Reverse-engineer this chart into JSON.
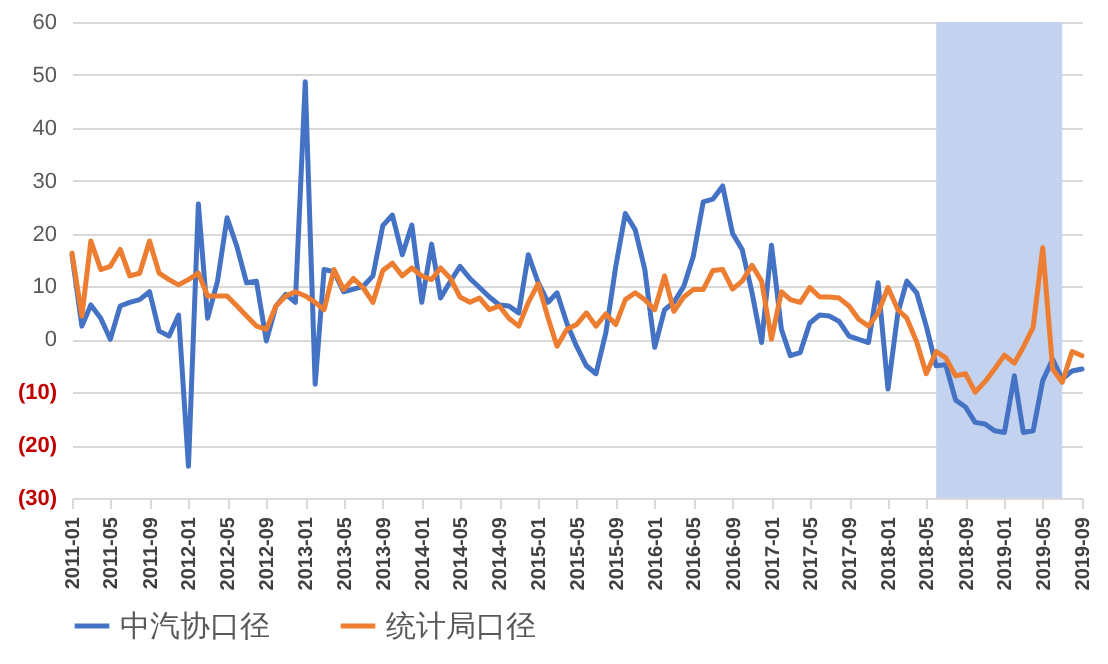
{
  "chart_data": {
    "type": "line",
    "x": [
      "2011-01",
      "2011-02",
      "2011-03",
      "2011-04",
      "2011-05",
      "2011-06",
      "2011-07",
      "2011-08",
      "2011-09",
      "2011-10",
      "2011-11",
      "2011-12",
      "2012-01",
      "2012-02",
      "2012-03",
      "2012-04",
      "2012-05",
      "2012-06",
      "2012-07",
      "2012-08",
      "2012-09",
      "2012-10",
      "2012-11",
      "2012-12",
      "2013-01",
      "2013-02",
      "2013-03",
      "2013-04",
      "2013-05",
      "2013-06",
      "2013-07",
      "2013-08",
      "2013-09",
      "2013-10",
      "2013-11",
      "2013-12",
      "2014-01",
      "2014-02",
      "2014-03",
      "2014-04",
      "2014-05",
      "2014-06",
      "2014-07",
      "2014-08",
      "2014-09",
      "2014-10",
      "2014-11",
      "2014-12",
      "2015-01",
      "2015-02",
      "2015-03",
      "2015-04",
      "2015-05",
      "2015-06",
      "2015-07",
      "2015-08",
      "2015-09",
      "2015-10",
      "2015-11",
      "2015-12",
      "2016-01",
      "2016-02",
      "2016-03",
      "2016-04",
      "2016-05",
      "2016-06",
      "2016-07",
      "2016-08",
      "2016-09",
      "2016-10",
      "2016-11",
      "2016-12",
      "2017-01",
      "2017-02",
      "2017-03",
      "2017-04",
      "2017-05",
      "2017-06",
      "2017-07",
      "2017-08",
      "2017-09",
      "2017-10",
      "2017-11",
      "2017-12",
      "2018-01",
      "2018-02",
      "2018-03",
      "2018-04",
      "2018-05",
      "2018-06",
      "2018-07",
      "2018-08",
      "2018-09",
      "2018-10",
      "2018-11",
      "2018-12",
      "2019-01",
      "2019-02",
      "2019-03",
      "2019-04",
      "2019-05",
      "2019-06",
      "2019-07",
      "2019-08",
      "2019-09"
    ],
    "series": [
      {
        "name": "中汽协口径",
        "color": "#4472c4",
        "values": [
          16,
          2.5,
          6.5,
          4,
          0,
          6.3,
          7,
          7.5,
          9,
          1.6,
          0.6,
          4.6,
          -24,
          25.6,
          4,
          11,
          23,
          17.5,
          10.7,
          11,
          -0.3,
          6.3,
          8.5,
          7,
          48.7,
          -8.5,
          13.2,
          12.8,
          9,
          9.5,
          10,
          12,
          21.5,
          23.5,
          16,
          21.6,
          7,
          18,
          7.8,
          11,
          13.8,
          11.5,
          9.8,
          8,
          6.5,
          6.3,
          5,
          16,
          10.7,
          7,
          8.8,
          3,
          -1.3,
          -5,
          -6.5,
          1.3,
          13.8,
          23.8,
          20.7,
          13.2,
          -1.5,
          5.6,
          7,
          10,
          15.7,
          26,
          26.5,
          29,
          20,
          17,
          8.8,
          -0.6,
          17.8,
          1.9,
          -3.1,
          -2.5,
          3.1,
          4.6,
          4.4,
          3.4,
          0.6,
          0,
          -0.6,
          10.7,
          -9.4,
          5,
          11,
          8.8,
          2.5,
          -5,
          -4.8,
          -11.5,
          -12.8,
          -15.7,
          -16,
          -17.3,
          -17.6,
          -6.9,
          -17.6,
          -17.3,
          -7.8,
          -3.8,
          -7.5,
          -6,
          -5.6
        ]
      },
      {
        "name": "统计局口径",
        "color": "#ed7d31",
        "values": [
          16.3,
          4.4,
          18.6,
          13.2,
          13.8,
          17,
          12,
          12.5,
          18.6,
          12.5,
          11.3,
          10.3,
          11.3,
          12.5,
          8.2,
          8.2,
          8.2,
          6.3,
          4.4,
          2.5,
          1.9,
          6.3,
          8.2,
          9,
          8.2,
          7,
          5.6,
          13.2,
          9.4,
          11.5,
          9.8,
          7,
          13,
          14.4,
          12,
          13.5,
          12,
          11.3,
          13.5,
          11.5,
          8,
          7,
          7.8,
          5.6,
          6.3,
          4,
          2.5,
          7,
          10.5,
          4,
          -1.3,
          1.9,
          2.8,
          5,
          2.5,
          4.8,
          2.8,
          7.5,
          8.8,
          7.5,
          5.6,
          12,
          5.3,
          8,
          9.4,
          9.4,
          13,
          13.2,
          9.5,
          11,
          14,
          11,
          0,
          9,
          7.5,
          7,
          9.8,
          8,
          8,
          7.8,
          6.3,
          3.8,
          2.5,
          5,
          9.8,
          5.6,
          4,
          -0.5,
          -6.5,
          -2.3,
          -3.5,
          -6.9,
          -6.5,
          -10,
          -8,
          -5.6,
          -3,
          -4.5,
          -1.5,
          2.3,
          17.3,
          -5.6,
          -8.1,
          -2.3,
          -3.1
        ]
      }
    ],
    "xlim": [
      "2011-01",
      "2019-09"
    ],
    "xticks": [
      "2011-01",
      "2011-05",
      "2011-09",
      "2012-01",
      "2012-05",
      "2012-09",
      "2013-01",
      "2013-05",
      "2013-09",
      "2014-01",
      "2014-05",
      "2014-09",
      "2015-01",
      "2015-05",
      "2015-09",
      "2016-01",
      "2016-05",
      "2016-09",
      "2017-01",
      "2017-05",
      "2017-09",
      "2018-01",
      "2018-05",
      "2018-09",
      "2019-01",
      "2019-05",
      "2019-09"
    ],
    "ylim": [
      -30,
      60
    ],
    "yticks": [
      {
        "value": -30,
        "label": "(30)"
      },
      {
        "value": -20,
        "label": "(20)"
      },
      {
        "value": -10,
        "label": "(10)"
      },
      0,
      10,
      20,
      30,
      40,
      50,
      60
    ],
    "bands": [
      {
        "axis": "x",
        "from": "2018-06",
        "to": "2019-07",
        "color": "#c3d2ee"
      }
    ],
    "grid": "y",
    "legend": "bottom"
  }
}
